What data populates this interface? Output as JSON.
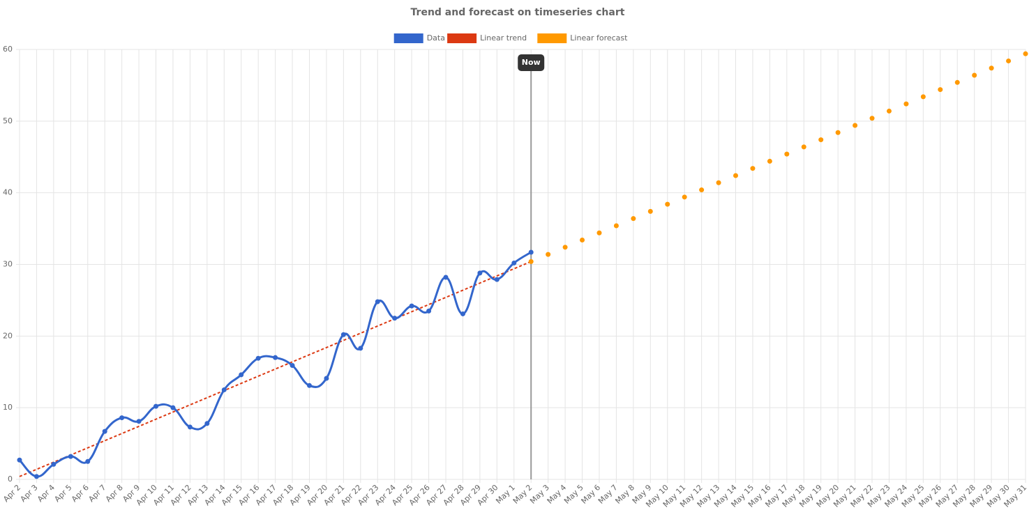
{
  "chart_data": {
    "type": "line",
    "title": "Trend and forecast on timeseries chart",
    "categories": [
      "Apr 2",
      "Apr 3",
      "Apr 4",
      "Apr 5",
      "Apr 6",
      "Apr 7",
      "Apr 8",
      "Apr 9",
      "Apr 10",
      "Apr 11",
      "Apr 12",
      "Apr 13",
      "Apr 14",
      "Apr 15",
      "Apr 16",
      "Apr 17",
      "Apr 18",
      "Apr 19",
      "Apr 20",
      "Apr 21",
      "Apr 22",
      "Apr 23",
      "Apr 24",
      "Apr 25",
      "Apr 26",
      "Apr 27",
      "Apr 28",
      "Apr 29",
      "Apr 30",
      "May 1",
      "May 2",
      "May 3",
      "May 4",
      "May 5",
      "May 6",
      "May 7",
      "May 8",
      "May 9",
      "May 10",
      "May 11",
      "May 12",
      "May 13",
      "May 14",
      "May 15",
      "May 16",
      "May 17",
      "May 18",
      "May 19",
      "May 20",
      "May 21",
      "May 22",
      "May 23",
      "May 24",
      "May 25",
      "May 26",
      "May 27",
      "May 28",
      "May 29",
      "May 30",
      "May 31"
    ],
    "series": [
      {
        "name": "Data",
        "color": "#3366cc",
        "style": "smooth",
        "values": [
          2.7,
          0.4,
          2.1,
          3.2,
          2.5,
          6.7,
          8.6,
          8.1,
          10.2,
          10.0,
          7.3,
          7.8,
          12.5,
          14.6,
          16.9,
          17.0,
          15.9,
          13.1,
          14.1,
          20.2,
          18.3,
          24.8,
          22.5,
          24.2,
          23.5,
          28.2,
          23.1,
          28.8,
          27.9,
          30.2,
          31.7,
          null,
          null,
          null,
          null,
          null,
          null,
          null,
          null,
          null,
          null,
          null,
          null,
          null,
          null,
          null,
          null,
          null,
          null,
          null,
          null,
          null,
          null,
          null,
          null,
          null,
          null,
          null,
          null,
          null
        ]
      },
      {
        "name": "Linear trend",
        "color": "#dc3912",
        "style": "dashed",
        "values": [
          0.4,
          1.4,
          2.4,
          3.4,
          4.4,
          5.4,
          6.4,
          7.4,
          8.4,
          9.4,
          10.4,
          11.4,
          12.4,
          13.4,
          14.4,
          15.4,
          16.4,
          17.4,
          18.4,
          19.4,
          20.4,
          21.4,
          22.4,
          23.4,
          24.4,
          25.4,
          26.4,
          27.4,
          28.4,
          29.4,
          30.4,
          null,
          null,
          null,
          null,
          null,
          null,
          null,
          null,
          null,
          null,
          null,
          null,
          null,
          null,
          null,
          null,
          null,
          null,
          null,
          null,
          null,
          null,
          null,
          null,
          null,
          null,
          null,
          null,
          null
        ]
      },
      {
        "name": "Linear forecast",
        "color": "#ff9900",
        "style": "points",
        "values": [
          null,
          null,
          null,
          null,
          null,
          null,
          null,
          null,
          null,
          null,
          null,
          null,
          null,
          null,
          null,
          null,
          null,
          null,
          null,
          null,
          null,
          null,
          null,
          null,
          null,
          null,
          null,
          null,
          null,
          null,
          30.4,
          31.4,
          32.4,
          33.4,
          34.4,
          35.4,
          36.4,
          37.4,
          38.4,
          39.4,
          40.4,
          41.4,
          42.4,
          43.4,
          44.4,
          45.4,
          46.4,
          47.4,
          48.4,
          49.4,
          50.4,
          51.4,
          52.4,
          53.4,
          54.4,
          55.4,
          56.4,
          57.4,
          58.4,
          59.4
        ]
      }
    ],
    "annotation": {
      "label": "Now",
      "x": "May 2"
    },
    "ylim": [
      0,
      60
    ],
    "yticks": [
      0,
      10,
      20,
      30,
      40,
      50,
      60
    ],
    "grid": true,
    "legend": "top"
  }
}
